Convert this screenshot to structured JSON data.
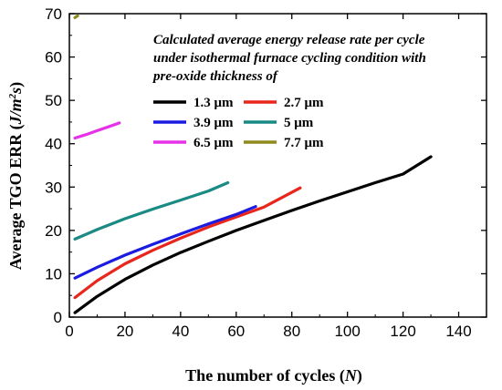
{
  "chart_data": {
    "type": "line",
    "xlabel": "The number of cycles (N)",
    "ylabel": "Average TGO ERR (J/m²s)",
    "xlim": [
      0,
      150
    ],
    "ylim": [
      0,
      70
    ],
    "xticks": [
      0,
      20,
      40,
      60,
      80,
      100,
      120,
      140
    ],
    "yticks": [
      0,
      10,
      20,
      30,
      40,
      50,
      60,
      70
    ],
    "grid": false,
    "legend_title": [
      "Calculated average energy release rate per cycle",
      "under isothermal furnace cycling condition with",
      "pre-oxide thickness of"
    ],
    "legend_position": "top-right",
    "series": [
      {
        "name": "1.3 μm",
        "color": "#000000",
        "x": [
          2,
          10,
          20,
          30,
          40,
          50,
          60,
          70,
          80,
          90,
          100,
          110,
          120,
          130
        ],
        "y": [
          1,
          4.8,
          8.7,
          12,
          14.9,
          17.5,
          20,
          22.3,
          24.6,
          26.8,
          28.9,
          31,
          33,
          37
        ]
      },
      {
        "name": "2.7 μm",
        "color": "#e8261c",
        "x": [
          2,
          10,
          20,
          30,
          40,
          50,
          60,
          70,
          83
        ],
        "y": [
          4.5,
          8.4,
          12.3,
          15.4,
          18.2,
          20.8,
          23.1,
          25.4,
          29.8
        ]
      },
      {
        "name": "3.9 μm",
        "color": "#1c1ce0",
        "x": [
          2,
          10,
          20,
          30,
          40,
          50,
          60,
          67
        ],
        "y": [
          9,
          11.5,
          14.3,
          16.8,
          19.2,
          21.5,
          23.7,
          25.5
        ]
      },
      {
        "name": "5 μm",
        "color": "#1a8a85",
        "x": [
          2,
          10,
          20,
          30,
          40,
          50,
          57
        ],
        "y": [
          18,
          20.2,
          22.7,
          24.9,
          27,
          29.1,
          31
        ]
      },
      {
        "name": "6.5 μm",
        "color": "#e632e6",
        "x": [
          2,
          6,
          10,
          14,
          18
        ],
        "y": [
          41.3,
          42.1,
          43,
          43.9,
          44.8
        ]
      },
      {
        "name": "7.7 μm",
        "color": "#8f8a1e",
        "x": [
          2,
          2.5,
          3
        ],
        "y": [
          69.1,
          69.3,
          69.5
        ]
      }
    ]
  }
}
